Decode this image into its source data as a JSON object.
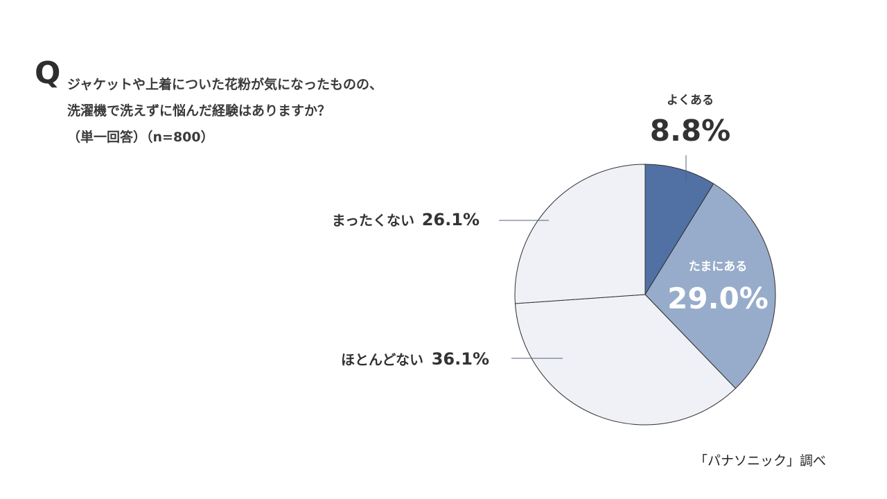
{
  "question": {
    "mark": "Q",
    "line1": "ジャケットや上着についた花粉が気になったものの、",
    "line2": "洗濯機で洗えずに悩んだ経験はありますか？",
    "line3": "（単一回答）（n=800）"
  },
  "source": "「パナソニック」調べ",
  "colors": {
    "yoku": "#5171a5",
    "tama": "#97acca",
    "hotondo": "#eff1f6",
    "mattaku": "#eff1f6",
    "text_dark": "#333333",
    "text_light": "#ffffff"
  },
  "chart_data": {
    "type": "pie",
    "title": "",
    "start_angle_deg": 0,
    "direction": "clockwise",
    "slices": [
      {
        "label": "よくある",
        "value": 8.8,
        "pct_label": "8.8%"
      },
      {
        "label": "たまにある",
        "value": 29.0,
        "pct_label": "29.0%"
      },
      {
        "label": "ほとんどない",
        "value": 36.1,
        "pct_label": "36.1%"
      },
      {
        "label": "まったくない",
        "value": 26.1,
        "pct_label": "26.1%"
      }
    ]
  }
}
